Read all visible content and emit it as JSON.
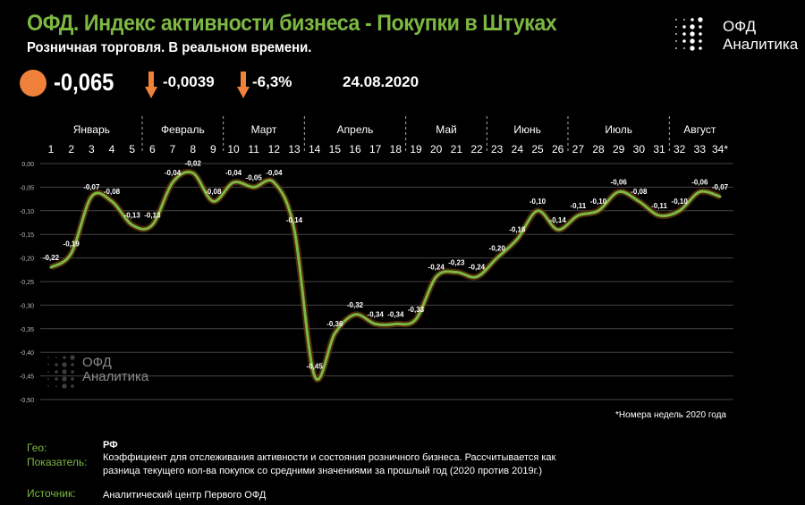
{
  "header": {
    "title": "ОФД. Индекс активности бизнеса - Покупки в Штуках",
    "subtitle": "Розничная торговля. В реальном времени.",
    "index_value": "-0,065",
    "change_abs": "-0,0039",
    "change_pct": "-6,3%",
    "date": "24.08.2020",
    "status_color": "#f0813a",
    "arrow_icon": "arrow-down-icon"
  },
  "logo": {
    "line1": "ОФД",
    "line2": "Аналитика"
  },
  "chart_data": {
    "type": "line",
    "smooth": true,
    "line_color": "#7cb842",
    "months": [
      {
        "label": "Январь",
        "weeks": [
          1,
          5
        ]
      },
      {
        "label": "Февраль",
        "weeks": [
          6,
          9
        ]
      },
      {
        "label": "Март",
        "weeks": [
          10,
          13
        ]
      },
      {
        "label": "Апрель",
        "weeks": [
          14,
          18
        ]
      },
      {
        "label": "Май",
        "weeks": [
          19,
          22
        ]
      },
      {
        "label": "Июнь",
        "weeks": [
          23,
          26
        ]
      },
      {
        "label": "Июль",
        "weeks": [
          27,
          31
        ]
      },
      {
        "label": "Август",
        "weeks": [
          32,
          34
        ]
      }
    ],
    "x": [
      1,
      2,
      3,
      4,
      5,
      6,
      7,
      8,
      9,
      10,
      11,
      12,
      13,
      14,
      15,
      16,
      17,
      18,
      19,
      20,
      21,
      22,
      23,
      24,
      25,
      26,
      27,
      28,
      29,
      30,
      31,
      32,
      33,
      34
    ],
    "last_tick_suffix": "*",
    "values": [
      -0.22,
      -0.19,
      -0.07,
      -0.08,
      -0.13,
      -0.13,
      -0.04,
      -0.02,
      -0.08,
      -0.04,
      -0.05,
      -0.04,
      -0.14,
      -0.45,
      -0.36,
      -0.32,
      -0.34,
      -0.34,
      -0.33,
      -0.24,
      -0.23,
      -0.24,
      -0.2,
      -0.16,
      -0.1,
      -0.14,
      -0.11,
      -0.1,
      -0.06,
      -0.08,
      -0.11,
      -0.1,
      -0.06,
      -0.07
    ],
    "labels": [
      "-0,22",
      "-0,19",
      "-0,07",
      "-0,08",
      "-0,13",
      "-0,13",
      "-0,04",
      "-0,02",
      "-0,08",
      "-0,04",
      "-0,05",
      "-0,04",
      "-0,14",
      "-0,45",
      "-0,36",
      "-0,32",
      "-0,34",
      "-0,34",
      "-0,33",
      "-0,24",
      "-0,23",
      "-0,24",
      "-0,20",
      "-0,16",
      "-0,10",
      "-0,14",
      "-0,11",
      "-0,10",
      "-0,06",
      "-0,08",
      "-0,11",
      "-0,10",
      "-0,06",
      "-0,07"
    ],
    "yticks": [
      "0,00",
      "-0,05",
      "-0,10",
      "-0,15",
      "-0,20",
      "-0,25",
      "-0,30",
      "-0,35",
      "-0,40",
      "-0,45",
      "-0,50"
    ],
    "ylim": [
      -0.5,
      0
    ],
    "grid": true,
    "footnote": "*Номера недель 2020 года"
  },
  "info": {
    "geo_label": "Гео:",
    "geo_value": "РФ",
    "metric_label": "Показатель:",
    "metric_line1": "Коэффициент для отслеживания активности и состояния розничного бизнеса. Рассчитывается как",
    "metric_line2": "разница текущего кол-ва покупок со средними значениями за прошлый год (2020 против 2019г.)",
    "source_label": "Источник:",
    "source_value": "Аналитический центр  Первого ОФД"
  }
}
